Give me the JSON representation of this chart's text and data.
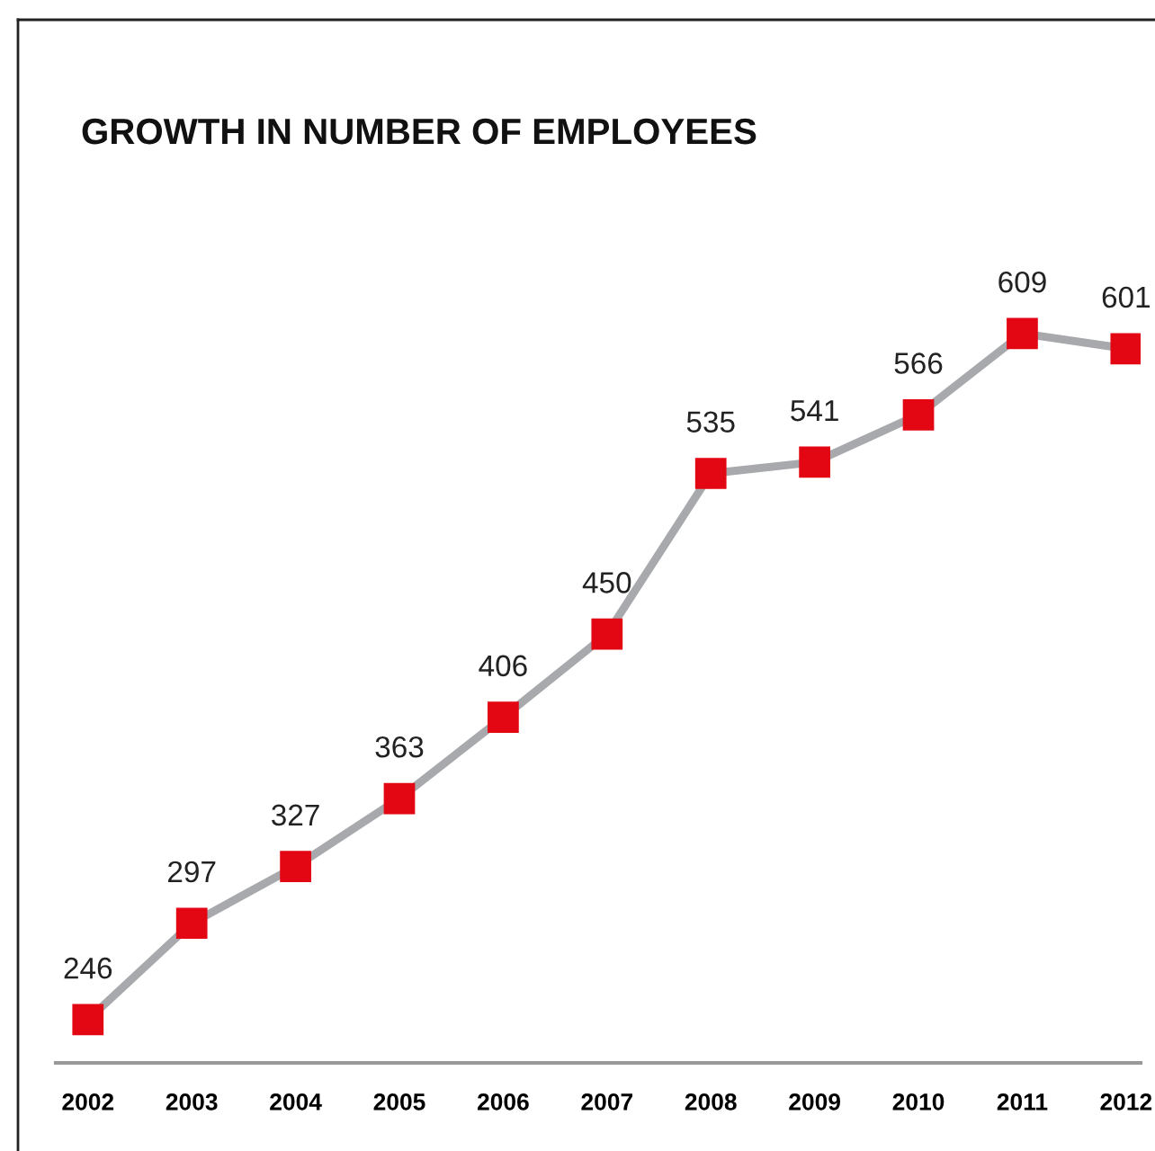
{
  "chart_data": {
    "type": "line",
    "title": "GROWTH IN NUMBER OF EMPLOYEES",
    "categories": [
      "2002",
      "2003",
      "2004",
      "2005",
      "2006",
      "2007",
      "2008",
      "2009",
      "2010",
      "2011",
      "2012"
    ],
    "series": [
      {
        "color": "#a7a9ac",
        "colors": [
          "#e30613",
          "#e30613",
          "#e30613",
          "#e30613",
          "#e30613",
          "#e30613",
          "#e30613",
          "#e30613",
          "#e30613",
          "#e30613",
          "#e30613"
        ],
        "values": [
          246,
          297,
          327,
          363,
          406,
          450,
          535,
          541,
          566,
          609,
          601
        ]
      }
    ],
    "marker": "square",
    "line_style": "solid",
    "data_labels": true,
    "grid": false,
    "tick_labels": "x"
  }
}
